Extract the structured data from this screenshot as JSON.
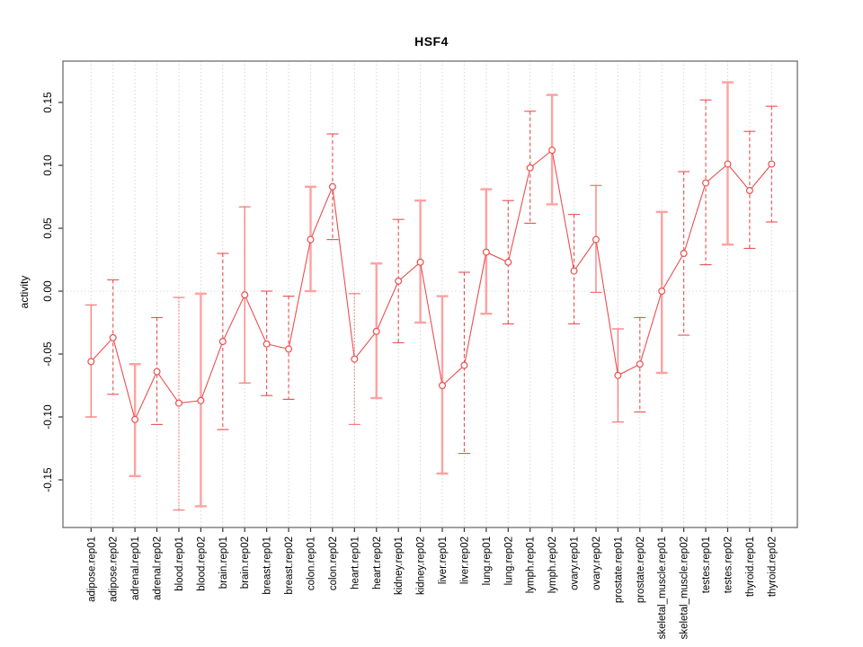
{
  "title": "HSF4",
  "colors": {
    "point_and_line": "#ea4f4f",
    "bar_dashed": "#ea4f4f",
    "bar_solid_thin": "#f87b7b",
    "bar_solid_thick": "#ffa1a1",
    "grid": "#d8d8d8",
    "zero_line": "#dcdcdc",
    "border": "#6e6e6e",
    "tick": "#333333",
    "label_text": "#000000"
  },
  "chart_data": {
    "type": "line",
    "subtype": "error-bar-ci-plot",
    "title": "HSF4",
    "xlabel": "",
    "ylabel": "activity",
    "ylim": [
      -0.185,
      0.175
    ],
    "yticks": [
      0.15,
      0.1,
      0.05,
      0.0,
      -0.05,
      -0.1,
      -0.15
    ],
    "ytick_labels": [
      "0.15",
      "0.10",
      "0.05",
      "0.00",
      "-0.05",
      "-0.10",
      "-0.15"
    ],
    "grid": "vertical dotted gridlines at each category; dotted horizontal line at 0",
    "legend": "none",
    "categories": [
      "adipose.rep01",
      "adipose.rep02",
      "adrenal.rep01",
      "adrenal.rep02",
      "blood.rep01",
      "blood.rep02",
      "brain.rep01",
      "brain.rep02",
      "breast.rep01",
      "breast.rep02",
      "colon.rep01",
      "colon.rep02",
      "heart.rep01",
      "heart.rep02",
      "kidney.rep01",
      "kidney.rep02",
      "liver.rep01",
      "liver.rep02",
      "lung.rep01",
      "lung.rep02",
      "lymph.rep01",
      "lymph.rep02",
      "ovary.rep01",
      "ovary.rep02",
      "prostate.rep01",
      "prostate.rep02",
      "skeletal_muscle.rep01",
      "skeletal_muscle.rep02",
      "testes.rep01",
      "testes.rep02",
      "thyroid.rep01",
      "thyroid.rep02"
    ],
    "series": [
      {
        "name": "activity",
        "values": [
          -0.056,
          -0.037,
          -0.102,
          -0.064,
          -0.089,
          -0.087,
          -0.04,
          -0.003,
          -0.042,
          -0.046,
          0.041,
          0.083,
          -0.054,
          -0.032,
          0.008,
          0.023,
          -0.075,
          -0.059,
          0.031,
          0.023,
          0.098,
          0.112,
          0.016,
          0.041,
          -0.067,
          -0.058,
          0.0,
          0.03,
          0.086,
          0.101,
          0.08,
          0.101
        ],
        "upper": [
          -0.011,
          0.009,
          -0.058,
          -0.021,
          -0.005,
          -0.002,
          0.03,
          0.067,
          0.0,
          -0.004,
          0.083,
          0.125,
          -0.002,
          0.022,
          0.057,
          0.072,
          -0.004,
          0.015,
          0.081,
          0.072,
          0.143,
          0.156,
          0.061,
          0.084,
          -0.03,
          -0.021,
          0.063,
          0.095,
          0.152,
          0.166,
          0.127,
          0.147
        ],
        "lower": [
          -0.1,
          -0.082,
          -0.147,
          -0.106,
          -0.174,
          -0.171,
          -0.11,
          -0.073,
          -0.083,
          -0.086,
          0.0,
          0.041,
          -0.106,
          -0.085,
          -0.041,
          -0.025,
          -0.145,
          -0.129,
          -0.018,
          -0.026,
          0.054,
          0.069,
          -0.026,
          -0.001,
          -0.104,
          -0.096,
          -0.065,
          -0.035,
          0.021,
          0.037,
          0.034,
          0.055
        ],
        "bar_styles": [
          "solid",
          "dashed",
          "thick",
          "dashed",
          "dotted",
          "thick",
          "dashed",
          "solid",
          "dashed",
          "dashed",
          "thick",
          "dashed",
          "dotted",
          "thick",
          "dashed",
          "thick",
          "thick",
          "dashed",
          "thick",
          "dashed",
          "dashed",
          "thick",
          "dashed",
          "solid",
          "solid",
          "dashed",
          "thick",
          "dashed",
          "dashed",
          "thick",
          "dashed",
          "dashed"
        ]
      }
    ]
  }
}
